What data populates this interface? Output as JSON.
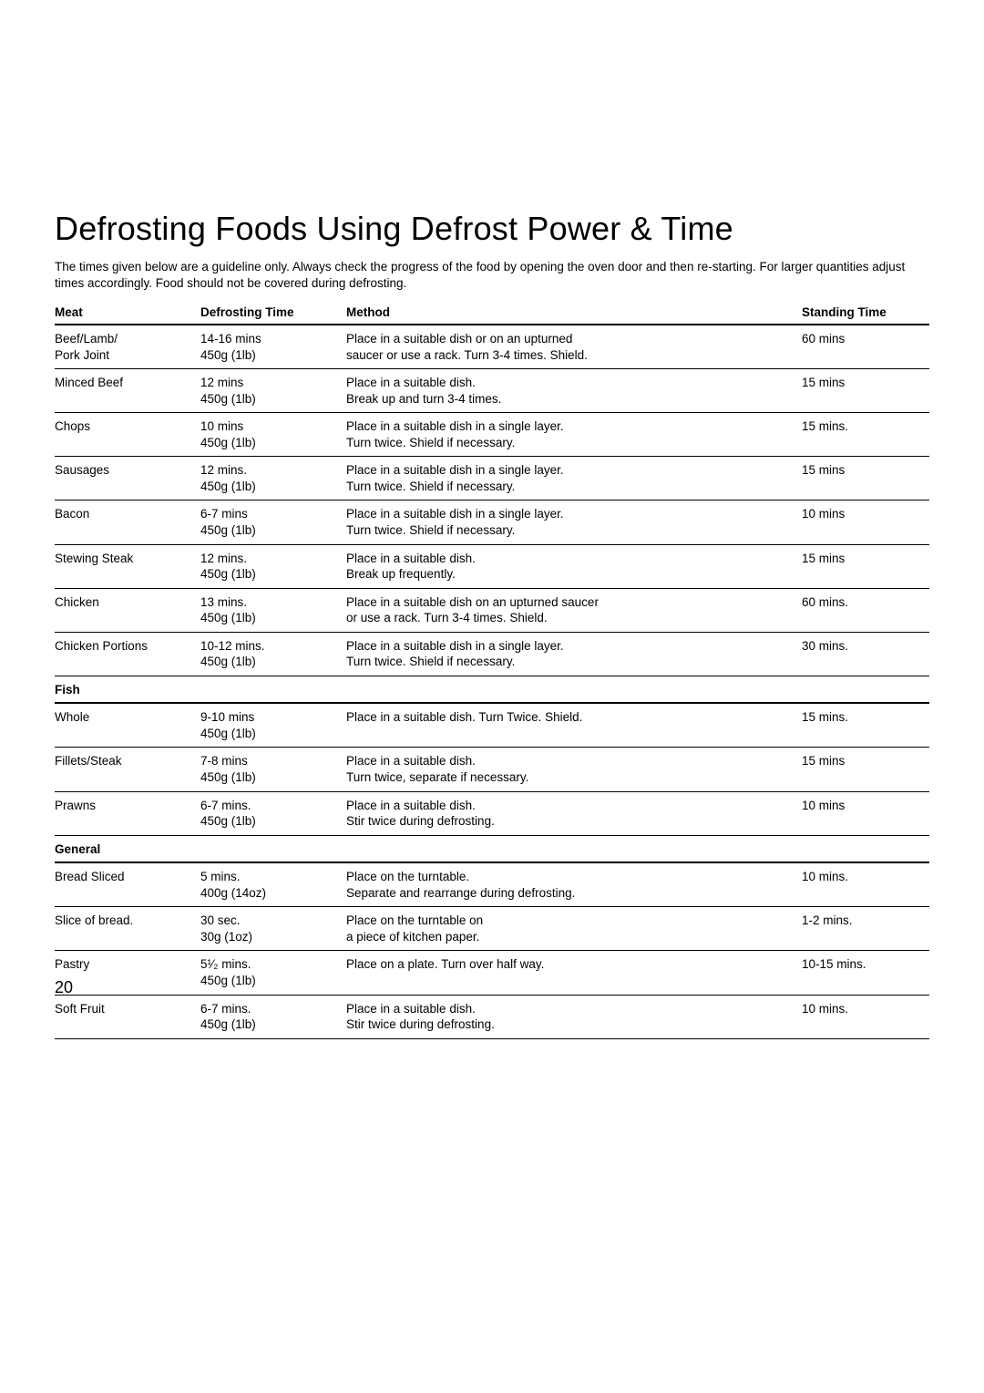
{
  "page": {
    "title": "Defrosting Foods Using Defrost Power & Time",
    "intro": "The times given below are a guideline only. Always check the progress of the food by opening the oven door and then re-starting. For larger quantities adjust times accordingly. Food should not be covered during defrosting.",
    "page_number": "20",
    "columns": [
      "Meat",
      "Defrosting Time",
      "Method",
      "Standing Time"
    ],
    "rows": [
      {
        "food_l1": "Beef/Lamb/",
        "food_l2": "Pork Joint",
        "time_l1": "14-16 mins",
        "time_l2": "450g (1lb)",
        "method_l1": "Place in a suitable dish or on an upturned",
        "method_l2": "saucer or use a rack. Turn 3-4 times. Shield.",
        "stand_l1": "60 mins",
        "stand_l2": ""
      },
      {
        "food_l1": "Minced Beef",
        "food_l2": "",
        "time_l1": "12 mins",
        "time_l2": "450g (1lb)",
        "method_l1": "Place in a suitable dish.",
        "method_l2": "Break up and turn 3-4 times.",
        "stand_l1": "15 mins",
        "stand_l2": ""
      },
      {
        "food_l1": "Chops",
        "food_l2": "",
        "time_l1": "10 mins",
        "time_l2": "450g (1lb)",
        "method_l1": "Place in a suitable dish in a single layer.",
        "method_l2": "Turn twice. Shield if necessary.",
        "stand_l1": "15 mins.",
        "stand_l2": ""
      },
      {
        "food_l1": "Sausages",
        "food_l2": "",
        "time_l1": "12 mins.",
        "time_l2": "450g (1lb)",
        "method_l1": "Place in a suitable dish in a single layer.",
        "method_l2": "Turn twice. Shield if necessary.",
        "stand_l1": "15 mins",
        "stand_l2": ""
      },
      {
        "food_l1": "Bacon",
        "food_l2": "",
        "time_l1": "6-7 mins",
        "time_l2": "450g (1lb)",
        "method_l1": "Place in a suitable dish in a single layer.",
        "method_l2": "Turn twice. Shield if necessary.",
        "stand_l1": "",
        "stand_l2": "10 mins"
      },
      {
        "food_l1": "Stewing Steak",
        "food_l2": "",
        "time_l1": "12 mins.",
        "time_l2": "450g (1lb)",
        "method_l1": "Place in a suitable dish.",
        "method_l2": "Break up frequently.",
        "stand_l1": "15 mins",
        "stand_l2": ""
      },
      {
        "food_l1": "Chicken",
        "food_l2": "",
        "time_l1": "13 mins.",
        "time_l2": "450g (1lb)",
        "method_l1": "Place in a suitable dish on an upturned saucer",
        "method_l2": "or use a rack. Turn 3-4 times. Shield.",
        "stand_l1": "60 mins.",
        "stand_l2": ""
      },
      {
        "food_l1": "Chicken Portions",
        "food_l2": "",
        "time_l1": "10-12 mins.",
        "time_l2": "450g (1lb)",
        "method_l1": "Place in a suitable dish in a single layer.",
        "method_l2": "Turn twice. Shield if necessary.",
        "stand_l1": "30 mins.",
        "stand_l2": ""
      }
    ],
    "section_fish_label": "Fish",
    "fish_rows": [
      {
        "food_l1": "Whole",
        "food_l2": "",
        "time_l1": "9-10 mins",
        "time_l2": "450g (1lb)",
        "method_l1": "Place in a suitable dish. Turn Twice. Shield.",
        "method_l2": "",
        "stand_l1": "15 mins.",
        "stand_l2": ""
      },
      {
        "food_l1": "Fillets/Steak",
        "food_l2": "",
        "time_l1": "7-8 mins",
        "time_l2": "450g (1lb)",
        "method_l1": "Place in a suitable dish.",
        "method_l2": "Turn twice, separate if necessary.",
        "stand_l1": "15 mins",
        "stand_l2": ""
      },
      {
        "food_l1": "Prawns",
        "food_l2": "",
        "time_l1": "6-7 mins.",
        "time_l2": "450g (1lb)",
        "method_l1": "Place in a suitable dish.",
        "method_l2": "Stir twice during defrosting.",
        "stand_l1": "10 mins",
        "stand_l2": ""
      }
    ],
    "section_general_label": "General",
    "general_rows": [
      {
        "food_l1": "Bread Sliced",
        "food_l2": "",
        "time_l1": "5 mins.",
        "time_l2": "400g (14oz)",
        "method_l1": "Place on the turntable.",
        "method_l2": "Separate and rearrange during defrosting.",
        "stand_l1": "10 mins.",
        "stand_l2": ""
      },
      {
        "food_l1": "Slice of bread.",
        "food_l2": "",
        "time_l1": "30 sec.",
        "time_l2": "30g (1oz)",
        "method_l1": "Place on the turntable on",
        "method_l2": "a piece of kitchen paper.",
        "stand_l1": "1-2 mins.",
        "stand_l2": ""
      },
      {
        "food_l1": "Pastry",
        "food_l2": "",
        "time_l1": "5¹⁄₂ mins.",
        "time_l2": "450g (1lb)",
        "method_l1": "Place on a plate. Turn over half way.",
        "method_l2": "",
        "stand_l1": "10-15 mins.",
        "stand_l2": ""
      },
      {
        "food_l1": "Soft Fruit",
        "food_l2": "",
        "time_l1": "6-7 mins.",
        "time_l2": "450g (1lb)",
        "method_l1": "Place in a suitable dish.",
        "method_l2": "Stir twice during defrosting.",
        "stand_l1": "10 mins.",
        "stand_l2": ""
      }
    ]
  }
}
